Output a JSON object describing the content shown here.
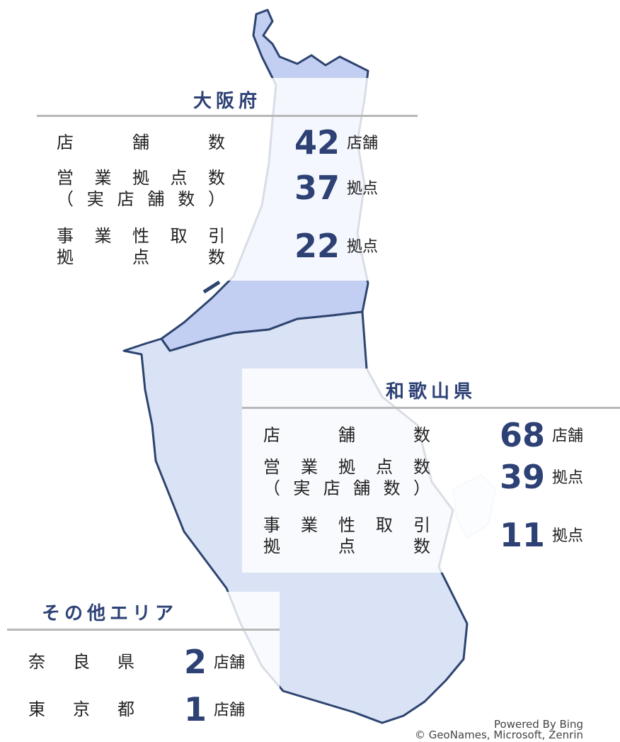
{
  "regions": [
    {
      "name": "大阪府",
      "rows": [
        {
          "label": [
            "店舗数"
          ],
          "value": 42,
          "unit": "店舗"
        },
        {
          "label": [
            "営業拠点数",
            "（実店舗数）"
          ],
          "value": 37,
          "unit": "拠点"
        },
        {
          "label": [
            "事業性取引",
            "拠点数"
          ],
          "value": 22,
          "unit": "拠点"
        }
      ]
    },
    {
      "name": "和歌山県",
      "rows": [
        {
          "label": [
            "店舗数"
          ],
          "value": 68,
          "unit": "店舗"
        },
        {
          "label": [
            "営業拠点数",
            "（実店舗数）"
          ],
          "value": 39,
          "unit": "拠点"
        },
        {
          "label": [
            "事業性取引",
            "拠点数"
          ],
          "value": 11,
          "unit": "拠点"
        }
      ]
    },
    {
      "name": "その他エリア",
      "rows": [
        {
          "label": [
            "奈良県"
          ],
          "value": 2,
          "unit": "店舗"
        },
        {
          "label": [
            "東京都"
          ],
          "value": 1,
          "unit": "店舗"
        }
      ]
    }
  ],
  "attribution": [
    "Powered By Bing",
    "© GeoNames, Microsoft, Zenrin"
  ]
}
